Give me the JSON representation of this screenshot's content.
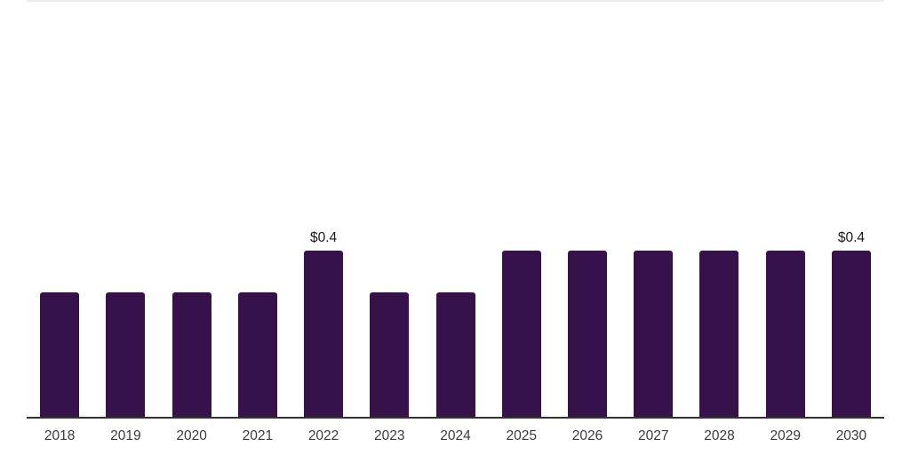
{
  "chart_data": {
    "type": "bar",
    "title": "",
    "xlabel": "",
    "ylabel": "",
    "categories": [
      "2018",
      "2019",
      "2020",
      "2021",
      "2022",
      "2023",
      "2024",
      "2025",
      "2026",
      "2027",
      "2028",
      "2029",
      "2030"
    ],
    "values": [
      0.3,
      0.3,
      0.3,
      0.3,
      0.4,
      0.3,
      0.3,
      0.4,
      0.4,
      0.4,
      0.4,
      0.4,
      0.4
    ],
    "data_labels": [
      "",
      "",
      "",
      "",
      "$0.4",
      "",
      "",
      "",
      "",
      "",
      "",
      "",
      "$0.4"
    ],
    "ylim": [
      0,
      1
    ],
    "grid": false,
    "legend_position": "none",
    "y_axis_visible": false,
    "x_axis_visible": true
  },
  "colors": {
    "bar": "#35124a",
    "axis_line": "#333333",
    "tick_text": "#3b3b3b",
    "data_label_text": "#1a1a1a",
    "top_border": "#ededed",
    "background": "#ffffff"
  }
}
